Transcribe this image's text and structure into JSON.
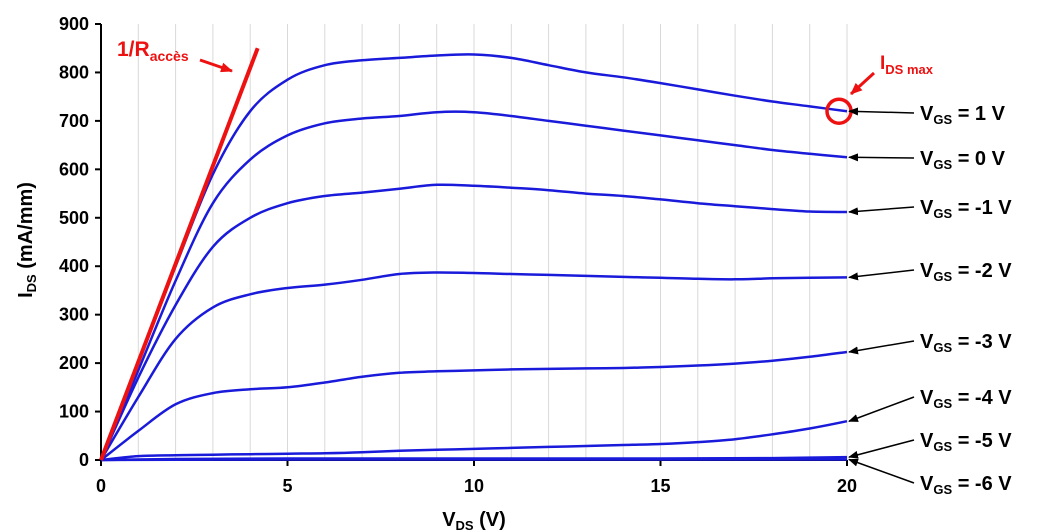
{
  "chart_data": {
    "type": "line",
    "xlabel": "V",
    "xlabel_sub": "DS",
    "xlabel_unit": " (V)",
    "ylabel": "I",
    "ylabel_sub": "DS",
    "ylabel_unit": " (mA/mm)",
    "xlim": [
      0,
      20
    ],
    "ylim": [
      0,
      900
    ],
    "xticks": [
      0,
      5,
      10,
      15,
      20
    ],
    "yticks": [
      0,
      100,
      200,
      300,
      400,
      500,
      600,
      700,
      800,
      900
    ],
    "grid": "vertical only",
    "series_color": "#1a1adb",
    "annotation_color": "#ee1111",
    "series": [
      {
        "name": "V_GS = 1 V",
        "points": [
          [
            0,
            0
          ],
          [
            1,
            200
          ],
          [
            2,
            400
          ],
          [
            3,
            590
          ],
          [
            4,
            720
          ],
          [
            5,
            785
          ],
          [
            6,
            815
          ],
          [
            7,
            825
          ],
          [
            8,
            830
          ],
          [
            9,
            835
          ],
          [
            10,
            837
          ],
          [
            11,
            830
          ],
          [
            12,
            815
          ],
          [
            13,
            800
          ],
          [
            14,
            790
          ],
          [
            15,
            778
          ],
          [
            16,
            765
          ],
          [
            17,
            752
          ],
          [
            18,
            740
          ],
          [
            19,
            730
          ],
          [
            20,
            720
          ]
        ]
      },
      {
        "name": "V_GS = 0 V",
        "points": [
          [
            0,
            0
          ],
          [
            1,
            185
          ],
          [
            2,
            370
          ],
          [
            3,
            530
          ],
          [
            4,
            620
          ],
          [
            5,
            670
          ],
          [
            6,
            695
          ],
          [
            7,
            705
          ],
          [
            8,
            710
          ],
          [
            9,
            718
          ],
          [
            10,
            718
          ],
          [
            11,
            710
          ],
          [
            12,
            700
          ],
          [
            13,
            690
          ],
          [
            14,
            680
          ],
          [
            15,
            670
          ],
          [
            16,
            660
          ],
          [
            17,
            650
          ],
          [
            18,
            640
          ],
          [
            19,
            632
          ],
          [
            20,
            625
          ]
        ]
      },
      {
        "name": "V_GS = -1 V",
        "points": [
          [
            0,
            0
          ],
          [
            1,
            170
          ],
          [
            2,
            320
          ],
          [
            3,
            440
          ],
          [
            4,
            500
          ],
          [
            5,
            530
          ],
          [
            6,
            545
          ],
          [
            7,
            552
          ],
          [
            8,
            560
          ],
          [
            9,
            568
          ],
          [
            10,
            566
          ],
          [
            11,
            562
          ],
          [
            12,
            557
          ],
          [
            13,
            550
          ],
          [
            14,
            545
          ],
          [
            15,
            538
          ],
          [
            16,
            530
          ],
          [
            17,
            524
          ],
          [
            18,
            518
          ],
          [
            19,
            513
          ],
          [
            20,
            512
          ]
        ]
      },
      {
        "name": "V_GS = -2 V",
        "points": [
          [
            0,
            0
          ],
          [
            1,
            130
          ],
          [
            2,
            250
          ],
          [
            3,
            315
          ],
          [
            4,
            342
          ],
          [
            5,
            355
          ],
          [
            6,
            362
          ],
          [
            7,
            372
          ],
          [
            8,
            384
          ],
          [
            9,
            387
          ],
          [
            10,
            386
          ],
          [
            11,
            384
          ],
          [
            12,
            382
          ],
          [
            13,
            380
          ],
          [
            14,
            378
          ],
          [
            15,
            376
          ],
          [
            16,
            374
          ],
          [
            17,
            373
          ],
          [
            18,
            375
          ],
          [
            19,
            376
          ],
          [
            20,
            377
          ]
        ]
      },
      {
        "name": "V_GS = -3 V",
        "points": [
          [
            0,
            0
          ],
          [
            1,
            60
          ],
          [
            2,
            115
          ],
          [
            3,
            138
          ],
          [
            4,
            146
          ],
          [
            5,
            150
          ],
          [
            6,
            160
          ],
          [
            7,
            172
          ],
          [
            8,
            180
          ],
          [
            9,
            183
          ],
          [
            10,
            185
          ],
          [
            11,
            187
          ],
          [
            12,
            188
          ],
          [
            13,
            189
          ],
          [
            14,
            190
          ],
          [
            15,
            192
          ],
          [
            16,
            195
          ],
          [
            17,
            199
          ],
          [
            18,
            205
          ],
          [
            19,
            213
          ],
          [
            20,
            223
          ]
        ]
      },
      {
        "name": "V_GS = -4 V",
        "points": [
          [
            0,
            0
          ],
          [
            1,
            8
          ],
          [
            2,
            10
          ],
          [
            3,
            11
          ],
          [
            4,
            12
          ],
          [
            5,
            13
          ],
          [
            6,
            14
          ],
          [
            7,
            16
          ],
          [
            8,
            19
          ],
          [
            9,
            21
          ],
          [
            10,
            23
          ],
          [
            11,
            25
          ],
          [
            12,
            27
          ],
          [
            13,
            29
          ],
          [
            14,
            31
          ],
          [
            15,
            33
          ],
          [
            16,
            37
          ],
          [
            17,
            43
          ],
          [
            18,
            53
          ],
          [
            19,
            65
          ],
          [
            20,
            80
          ]
        ]
      },
      {
        "name": "V_GS = -5 V",
        "points": [
          [
            0,
            0
          ],
          [
            2,
            2
          ],
          [
            5,
            3
          ],
          [
            10,
            3
          ],
          [
            15,
            3
          ],
          [
            18,
            4
          ],
          [
            20,
            6
          ]
        ]
      },
      {
        "name": "V_GS = -6 V",
        "points": [
          [
            0,
            0
          ],
          [
            5,
            1
          ],
          [
            10,
            1
          ],
          [
            15,
            1
          ],
          [
            20,
            1
          ]
        ]
      }
    ],
    "labels": [
      {
        "prefix": "V",
        "sub": "GS",
        "suffix": " = 1 V"
      },
      {
        "prefix": "V",
        "sub": "GS",
        "suffix": " = 0 V"
      },
      {
        "prefix": "V",
        "sub": "GS",
        "suffix": " = -1 V"
      },
      {
        "prefix": "V",
        "sub": "GS",
        "suffix": " = -2 V"
      },
      {
        "prefix": "V",
        "sub": "GS",
        "suffix": " = -3 V"
      },
      {
        "prefix": "V",
        "sub": "GS",
        "suffix": " = -4 V"
      },
      {
        "prefix": "V",
        "sub": "GS",
        "suffix": " = -5 V"
      },
      {
        "prefix": "V",
        "sub": "GS",
        "suffix": " = -6 V"
      }
    ],
    "access_line": {
      "label": "1/R",
      "label_sub": "accès",
      "from": [
        0,
        0
      ],
      "to": [
        4.2,
        850
      ]
    },
    "idsmax": {
      "label": "I",
      "label_sub": "DS max",
      "at": [
        20,
        720
      ]
    }
  }
}
